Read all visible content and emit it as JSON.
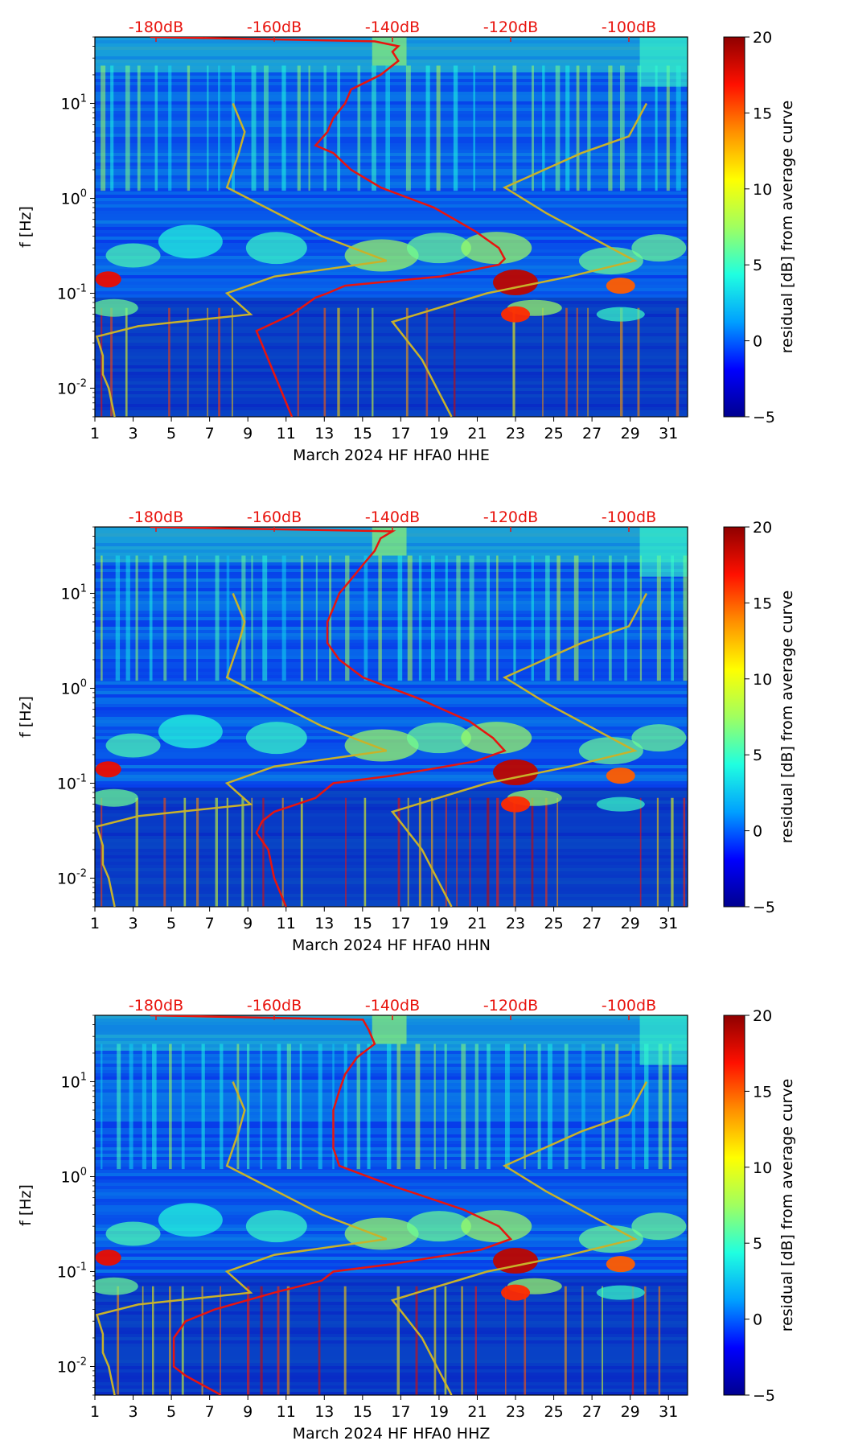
{
  "figure": {
    "description_lines": [
      "March 2024 HF HFA0"
    ]
  },
  "colors": {
    "average_curve": "#e8140e",
    "noise_model": "#c8b22a",
    "top_labels": "#e8140e",
    "colormap": [
      "#00008f",
      "#0000ff",
      "#00a0ff",
      "#20ffe0",
      "#a0ff60",
      "#ffff00",
      "#ff9000",
      "#ff1000",
      "#8f0000"
    ]
  },
  "chart_data": [
    {
      "type": "heatmap",
      "component": "HHE",
      "xlabel": "March 2024 HF HFA0  HHE",
      "ylabel": "f [Hz]",
      "xlim": [
        1,
        32
      ],
      "ylim_hz": [
        0.005,
        50
      ],
      "x_ticks": [
        "1",
        "3",
        "5",
        "7",
        "9",
        "11",
        "13",
        "15",
        "17",
        "19",
        "21",
        "23",
        "25",
        "27",
        "29",
        "31"
      ],
      "y_ticks": [
        "10^-2",
        "10^-1",
        "10^0",
        "10^1"
      ],
      "top_axis_ticks": [
        "-180dB",
        "-160dB",
        "-140dB",
        "-120dB",
        "-100dB"
      ],
      "colorbar": {
        "label": "residual [dB] from average curve",
        "range": [
          -5,
          20
        ],
        "ticks": [
          "20",
          "15",
          "10",
          "5",
          "0",
          "−5"
        ]
      },
      "average_curve_db_vs_hz": [
        [
          50,
          -181
        ],
        [
          45,
          -143
        ],
        [
          40,
          -139
        ],
        [
          35,
          -140
        ],
        [
          28,
          -139
        ],
        [
          20,
          -142
        ],
        [
          14,
          -147
        ],
        [
          10,
          -148
        ],
        [
          7,
          -150
        ],
        [
          5,
          -151
        ],
        [
          3.6,
          -153
        ],
        [
          3,
          -150
        ],
        [
          2,
          -147
        ],
        [
          1.3,
          -142
        ],
        [
          0.8,
          -133
        ],
        [
          0.45,
          -126
        ],
        [
          0.3,
          -122
        ],
        [
          0.23,
          -121
        ],
        [
          0.2,
          -122
        ],
        [
          0.15,
          -132
        ],
        [
          0.12,
          -148
        ],
        [
          0.1,
          -151
        ],
        [
          0.09,
          -153
        ],
        [
          0.06,
          -157
        ],
        [
          0.04,
          -163
        ],
        [
          0.02,
          -161
        ],
        [
          0.01,
          -159
        ],
        [
          0.005,
          -157
        ]
      ],
      "noise_models_db_vs_hz": [
        [
          [
            10,
            -167
          ],
          [
            5,
            -165
          ],
          [
            3,
            -166
          ],
          [
            1.3,
            -168
          ],
          [
            0.4,
            -152
          ],
          [
            0.22,
            -141
          ],
          [
            0.15,
            -160
          ],
          [
            0.1,
            -168
          ],
          [
            0.06,
            -164
          ],
          [
            0.045,
            -183
          ],
          [
            0.035,
            -190
          ],
          [
            0.022,
            -189
          ],
          [
            0.014,
            -189
          ],
          [
            0.01,
            -188
          ],
          [
            0.005,
            -187
          ]
        ],
        [
          [
            10,
            -97
          ],
          [
            4.5,
            -100
          ],
          [
            3,
            -108
          ],
          [
            1.3,
            -121
          ],
          [
            0.7,
            -114
          ],
          [
            0.22,
            -99
          ],
          [
            0.15,
            -110
          ],
          [
            0.1,
            -124
          ],
          [
            0.05,
            -140
          ],
          [
            0.02,
            -135
          ],
          [
            0.005,
            -130
          ]
        ]
      ]
    },
    {
      "type": "heatmap",
      "component": "HHN",
      "xlabel": "March 2024 HF HFA0  HHN",
      "ylabel": "f [Hz]",
      "xlim": [
        1,
        32
      ],
      "ylim_hz": [
        0.005,
        50
      ],
      "x_ticks": [
        "1",
        "3",
        "5",
        "7",
        "9",
        "11",
        "13",
        "15",
        "17",
        "19",
        "21",
        "23",
        "25",
        "27",
        "29",
        "31"
      ],
      "y_ticks": [
        "10^-2",
        "10^-1",
        "10^0",
        "10^1"
      ],
      "top_axis_ticks": [
        "-180dB",
        "-160dB",
        "-140dB",
        "-120dB",
        "-100dB"
      ],
      "colorbar": {
        "label": "residual [dB] from average curve",
        "range": [
          -5,
          20
        ],
        "ticks": [
          "20",
          "15",
          "10",
          "5",
          "0",
          "−5"
        ]
      },
      "average_curve_db_vs_hz": [
        [
          50,
          -181
        ],
        [
          45,
          -140
        ],
        [
          38,
          -142
        ],
        [
          28,
          -143
        ],
        [
          20,
          -145
        ],
        [
          14,
          -147
        ],
        [
          10,
          -149
        ],
        [
          7,
          -150
        ],
        [
          5,
          -151
        ],
        [
          3,
          -151
        ],
        [
          2,
          -149
        ],
        [
          1.3,
          -145
        ],
        [
          0.8,
          -136
        ],
        [
          0.45,
          -127
        ],
        [
          0.3,
          -123
        ],
        [
          0.22,
          -121
        ],
        [
          0.17,
          -126
        ],
        [
          0.12,
          -140
        ],
        [
          0.1,
          -150
        ],
        [
          0.07,
          -153
        ],
        [
          0.05,
          -160
        ],
        [
          0.04,
          -162
        ],
        [
          0.03,
          -163
        ],
        [
          0.02,
          -161
        ],
        [
          0.01,
          -160
        ],
        [
          0.005,
          -158
        ]
      ],
      "noise_models_db_vs_hz": [
        [
          [
            10,
            -167
          ],
          [
            5,
            -165
          ],
          [
            3,
            -166
          ],
          [
            1.3,
            -168
          ],
          [
            0.4,
            -152
          ],
          [
            0.22,
            -141
          ],
          [
            0.15,
            -160
          ],
          [
            0.1,
            -168
          ],
          [
            0.06,
            -164
          ],
          [
            0.045,
            -183
          ],
          [
            0.035,
            -190
          ],
          [
            0.022,
            -189
          ],
          [
            0.014,
            -189
          ],
          [
            0.01,
            -188
          ],
          [
            0.005,
            -187
          ]
        ],
        [
          [
            10,
            -97
          ],
          [
            4.5,
            -100
          ],
          [
            3,
            -108
          ],
          [
            1.3,
            -121
          ],
          [
            0.7,
            -114
          ],
          [
            0.22,
            -99
          ],
          [
            0.15,
            -110
          ],
          [
            0.1,
            -124
          ],
          [
            0.05,
            -140
          ],
          [
            0.02,
            -135
          ],
          [
            0.005,
            -130
          ]
        ]
      ]
    },
    {
      "type": "heatmap",
      "component": "HHZ",
      "xlabel": "March 2024 HF HFA0  HHZ",
      "ylabel": "f [Hz]",
      "xlim": [
        1,
        32
      ],
      "ylim_hz": [
        0.005,
        50
      ],
      "x_ticks": [
        "1",
        "3",
        "5",
        "7",
        "9",
        "11",
        "13",
        "15",
        "17",
        "19",
        "21",
        "23",
        "25",
        "27",
        "29",
        "31"
      ],
      "y_ticks": [
        "10^-2",
        "10^-1",
        "10^0",
        "10^1"
      ],
      "top_axis_ticks": [
        "-180dB",
        "-160dB",
        "-140dB",
        "-120dB",
        "-100dB"
      ],
      "colorbar": {
        "label": "residual [dB] from average curve",
        "range": [
          -5,
          20
        ],
        "ticks": [
          "20",
          "15",
          "10",
          "5",
          "0",
          "−5"
        ]
      },
      "average_curve_db_vs_hz": [
        [
          50,
          -181
        ],
        [
          45,
          -145
        ],
        [
          35,
          -144
        ],
        [
          25,
          -143
        ],
        [
          18,
          -146
        ],
        [
          12,
          -148
        ],
        [
          8,
          -149
        ],
        [
          5,
          -150
        ],
        [
          3,
          -150
        ],
        [
          2,
          -150
        ],
        [
          1.3,
          -149
        ],
        [
          0.8,
          -140
        ],
        [
          0.45,
          -128
        ],
        [
          0.3,
          -122
        ],
        [
          0.22,
          -120
        ],
        [
          0.17,
          -125
        ],
        [
          0.12,
          -140
        ],
        [
          0.1,
          -150
        ],
        [
          0.08,
          -152
        ],
        [
          0.06,
          -160
        ],
        [
          0.04,
          -170
        ],
        [
          0.03,
          -175
        ],
        [
          0.02,
          -177
        ],
        [
          0.01,
          -177
        ],
        [
          0.008,
          -175
        ],
        [
          0.005,
          -169
        ]
      ],
      "noise_models_db_vs_hz": [
        [
          [
            10,
            -167
          ],
          [
            5,
            -165
          ],
          [
            3,
            -166
          ],
          [
            1.3,
            -168
          ],
          [
            0.4,
            -152
          ],
          [
            0.22,
            -141
          ],
          [
            0.15,
            -160
          ],
          [
            0.1,
            -168
          ],
          [
            0.06,
            -164
          ],
          [
            0.045,
            -183
          ],
          [
            0.035,
            -190
          ],
          [
            0.022,
            -189
          ],
          [
            0.014,
            -189
          ],
          [
            0.01,
            -188
          ],
          [
            0.005,
            -187
          ]
        ],
        [
          [
            10,
            -97
          ],
          [
            4.5,
            -100
          ],
          [
            3,
            -108
          ],
          [
            1.3,
            -121
          ],
          [
            0.7,
            -114
          ],
          [
            0.22,
            -99
          ],
          [
            0.15,
            -110
          ],
          [
            0.1,
            -124
          ],
          [
            0.05,
            -140
          ],
          [
            0.02,
            -135
          ],
          [
            0.005,
            -130
          ]
        ]
      ]
    }
  ]
}
